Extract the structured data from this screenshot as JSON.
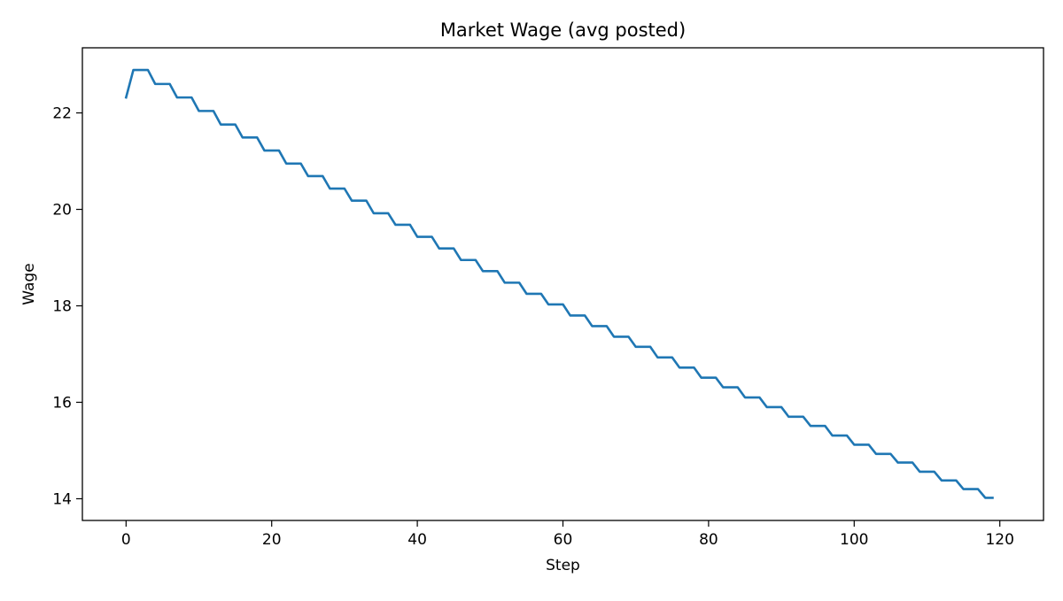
{
  "chart_data": {
    "type": "line",
    "title": "Market Wage (avg posted)",
    "xlabel": "Step",
    "ylabel": "Wage",
    "xlim": [
      -6,
      126
    ],
    "ylim": [
      13.55,
      23.35
    ],
    "xticks": [
      0,
      20,
      40,
      60,
      80,
      100,
      120
    ],
    "yticks": [
      14,
      16,
      18,
      20,
      22
    ],
    "grid": false,
    "legend": "none",
    "line_color": "#1f77b4",
    "series": [
      {
        "x": [
          0,
          1,
          2,
          3,
          4,
          5,
          6,
          7,
          8,
          9,
          10,
          11,
          12,
          13,
          14,
          15,
          16,
          17,
          18,
          19,
          20,
          21,
          22,
          23,
          24,
          25,
          26,
          27,
          28,
          29,
          30,
          31,
          32,
          33,
          34,
          35,
          36,
          37,
          38,
          39,
          40,
          41,
          42,
          43,
          44,
          45,
          46,
          47,
          48,
          49,
          50,
          51,
          52,
          53,
          54,
          55,
          56,
          57,
          58,
          59,
          60,
          61,
          62,
          63,
          64,
          65,
          66,
          67,
          68,
          69,
          70,
          71,
          72,
          73,
          74,
          75,
          76,
          77,
          78,
          79,
          80,
          81,
          82,
          83,
          84,
          85,
          86,
          87,
          88,
          89,
          90,
          91,
          92,
          93,
          94,
          95,
          96,
          97,
          98,
          99,
          100,
          101,
          102,
          103,
          104,
          105,
          106,
          107,
          108,
          109,
          110,
          111,
          112,
          113,
          114,
          115,
          116,
          117,
          118,
          119
        ],
        "values": [
          22.32,
          22.89,
          22.89,
          22.89,
          22.6,
          22.6,
          22.6,
          22.32,
          22.32,
          22.32,
          22.04,
          22.04,
          22.04,
          21.76,
          21.76,
          21.76,
          21.49,
          21.49,
          21.49,
          21.22,
          21.22,
          21.22,
          20.95,
          20.95,
          20.95,
          20.69,
          20.69,
          20.69,
          20.43,
          20.43,
          20.43,
          20.18,
          20.18,
          20.18,
          19.92,
          19.92,
          19.92,
          19.68,
          19.68,
          19.68,
          19.43,
          19.43,
          19.43,
          19.19,
          19.19,
          19.19,
          18.95,
          18.95,
          18.95,
          18.72,
          18.72,
          18.72,
          18.48,
          18.48,
          18.48,
          18.25,
          18.25,
          18.25,
          18.03,
          18.03,
          18.03,
          17.8,
          17.8,
          17.8,
          17.58,
          17.58,
          17.58,
          17.36,
          17.36,
          17.36,
          17.15,
          17.15,
          17.15,
          16.93,
          16.93,
          16.93,
          16.72,
          16.72,
          16.72,
          16.51,
          16.51,
          16.51,
          16.31,
          16.31,
          16.31,
          16.1,
          16.1,
          16.1,
          15.9,
          15.9,
          15.9,
          15.7,
          15.7,
          15.7,
          15.51,
          15.51,
          15.51,
          15.31,
          15.31,
          15.31,
          15.12,
          15.12,
          15.12,
          14.93,
          14.93,
          14.93,
          14.75,
          14.75,
          14.75,
          14.56,
          14.56,
          14.56,
          14.38,
          14.38,
          14.38,
          14.2,
          14.2,
          14.2,
          14.02,
          14.02
        ]
      }
    ]
  }
}
